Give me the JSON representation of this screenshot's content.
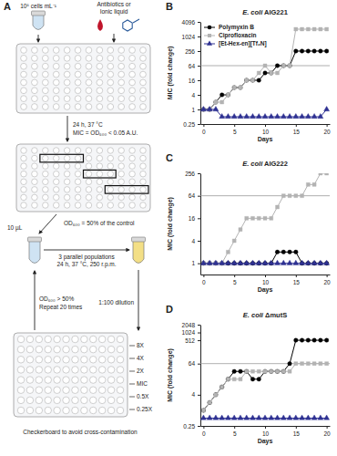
{
  "panel_a": {
    "label": "A",
    "inoculum": "10⁵ cells mL⁻¹",
    "treatment": [
      "Antibiotics or",
      "Ionic liquid"
    ],
    "incubation": "24 h, 37 °C",
    "mic_rule": "MIC = OD₆₀₀ < 0.05 A.U.",
    "selection": "OD₆₀₀ = 50% of the control",
    "volume": "10 µL",
    "populations": [
      "3 parallel populations",
      "24 h, 37 °C, 250 r.p.m."
    ],
    "repeat": [
      "OD₆₀₀ > 50%",
      "Repeat 20 times"
    ],
    "dilution": "1:100 dilution",
    "concentrations": [
      "8X",
      "4X",
      "2X",
      "MIC",
      "0.5X",
      "0.25X"
    ],
    "caption": "Checkerboard to avoid cross-contamination"
  },
  "chart_data": [
    {
      "type": "line",
      "panel": "B",
      "title": "E. coli AIG221",
      "x_label": "Days",
      "y_label": "MIC (fold change)",
      "log": "y",
      "legend": "top-left",
      "x": [
        0,
        1,
        2,
        3,
        4,
        5,
        6,
        7,
        8,
        9,
        10,
        11,
        12,
        13,
        14,
        15,
        16,
        17,
        18,
        19,
        20
      ],
      "xlim": [
        -0.5,
        20.5
      ],
      "xticks": [
        0,
        5,
        10,
        15,
        20
      ],
      "ylim": [
        0.25,
        4096
      ],
      "yticks": [
        0.25,
        1,
        4,
        16,
        64,
        256,
        1024,
        4096
      ],
      "threshold": 64,
      "series": [
        {
          "name": "Polymyxin B",
          "color": "#000000",
          "marker": "circle",
          "values": [
            1,
            1,
            2,
            4,
            4,
            8,
            8,
            16,
            16,
            16,
            32,
            32,
            64,
            64,
            64,
            256,
            256,
            256,
            256,
            256,
            256
          ]
        },
        {
          "name": "Ciprofloxacin",
          "color": "#b3b3b3",
          "marker": "square",
          "values": [
            1,
            1,
            2,
            2,
            4,
            8,
            8,
            16,
            16,
            32,
            64,
            32,
            32,
            64,
            64,
            2048,
            2048,
            2048,
            2048,
            2048,
            2048
          ]
        },
        {
          "name": "[Et-Hex-en][Tf₂N]",
          "color": "#2e3192",
          "marker": "triangle",
          "values": [
            1,
            1,
            1,
            0.5,
            0.5,
            0.5,
            0.5,
            0.5,
            0.5,
            0.5,
            0.5,
            0.5,
            0.5,
            0.5,
            0.5,
            0.5,
            0.5,
            0.5,
            0.5,
            0.5,
            1
          ]
        }
      ]
    },
    {
      "type": "line",
      "panel": "C",
      "title": "E. coli AIG222",
      "x_label": "Days",
      "y_label": "MIC (fold change)",
      "log": "y",
      "x": [
        0,
        1,
        2,
        3,
        4,
        5,
        6,
        7,
        8,
        9,
        10,
        11,
        12,
        13,
        14,
        15,
        16,
        17,
        18,
        19,
        20
      ],
      "xlim": [
        -0.5,
        20.5
      ],
      "xticks": [
        0,
        5,
        10,
        15,
        20
      ],
      "ylim": [
        0.5,
        256
      ],
      "yticks": [
        1,
        4,
        16,
        64,
        256
      ],
      "threshold": 64,
      "series": [
        {
          "color": "#000000",
          "marker": "circle",
          "values": [
            1,
            1,
            1,
            1,
            1,
            1,
            1,
            1,
            1,
            1,
            1,
            1,
            2,
            2,
            2,
            2,
            1,
            1,
            1,
            1,
            1
          ]
        },
        {
          "color": "#b3b3b3",
          "marker": "square",
          "values": [
            1,
            1,
            1,
            1,
            2,
            4,
            8,
            16,
            16,
            16,
            16,
            16,
            32,
            64,
            64,
            64,
            64,
            128,
            128,
            256,
            256
          ]
        },
        {
          "color": "#2e3192",
          "marker": "triangle",
          "values": [
            1,
            1,
            1,
            1,
            1,
            1,
            1,
            1,
            1,
            1,
            1,
            1,
            1,
            1,
            1,
            1,
            1,
            1,
            1,
            1,
            1
          ]
        }
      ]
    },
    {
      "type": "line",
      "panel": "D",
      "title": "E. coli ΔmutS",
      "x_label": "Days",
      "y_label": "MIC (fold change)",
      "log": "y",
      "x": [
        0,
        1,
        2,
        3,
        4,
        5,
        6,
        7,
        8,
        9,
        10,
        11,
        12,
        13,
        14,
        15,
        16,
        17,
        18,
        19,
        20
      ],
      "xlim": [
        -0.5,
        20.5
      ],
      "xticks": [
        0,
        5,
        10,
        15,
        20
      ],
      "ylim": [
        0.25,
        2048
      ],
      "yticks": [
        0.25,
        4,
        64,
        512,
        1024,
        2048
      ],
      "threshold": 64,
      "series": [
        {
          "color": "#000000",
          "marker": "circle",
          "values": [
            1,
            2,
            4,
            8,
            16,
            32,
            32,
            32,
            16,
            16,
            32,
            32,
            32,
            32,
            64,
            512,
            512,
            512,
            512,
            512,
            512
          ]
        },
        {
          "color": "#b3b3b3",
          "marker": "square",
          "values": [
            1,
            2,
            4,
            8,
            16,
            16,
            16,
            32,
            32,
            32,
            32,
            32,
            32,
            32,
            32,
            64,
            64,
            64,
            64,
            64,
            64
          ]
        },
        {
          "color": "#2e3192",
          "marker": "triangle",
          "values": [
            0.5,
            0.5,
            0.5,
            0.5,
            0.5,
            0.5,
            0.5,
            0.5,
            0.5,
            0.5,
            0.5,
            0.5,
            0.5,
            0.5,
            0.5,
            0.5,
            0.5,
            0.5,
            0.5,
            0.5,
            0.5
          ]
        }
      ]
    }
  ]
}
